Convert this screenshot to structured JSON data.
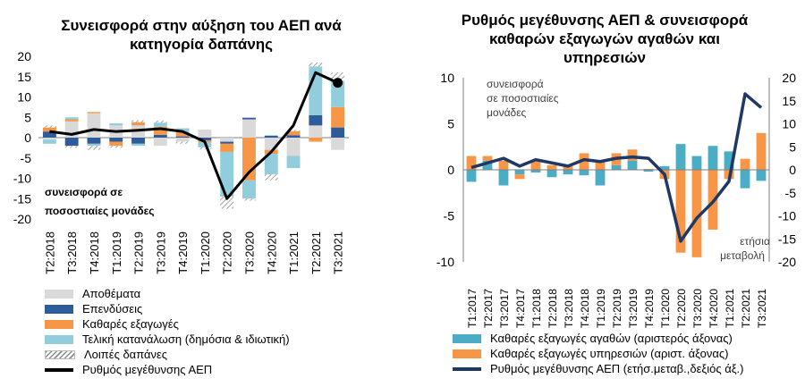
{
  "chart_data": [
    {
      "type": "bar",
      "stacked": true,
      "title": "Συνεισφορά στην αύξηση του ΑΕΠ ανά κατηγορία δαπάνης",
      "title_lines": [
        "Συνεισφορά στην αύξηση του ΑΕΠ ανά",
        "κατηγορία δαπάνης"
      ],
      "annotation_lines": [
        "συνεισφορά σε",
        "ποσοστιαίες μονάδες"
      ],
      "categories": [
        "Τ2:2018",
        "Τ3:2018",
        "Τ4:2018",
        "Τ1:2019",
        "Τ2:2019",
        "Τ3:2019",
        "Τ4:2019",
        "Τ1:2020",
        "Τ2:2020",
        "Τ3:2020",
        "Τ4:2020",
        "Τ1:2021",
        "Τ2:2021",
        "Τ3:2021"
      ],
      "ylim": [
        -20,
        20
      ],
      "yticks": [
        "20",
        "15",
        "10",
        "5",
        "0",
        "-5",
        "-10",
        "-15",
        "-20"
      ],
      "colors": {
        "inventories": "#d9d9d9",
        "investment": "#2e5b9a",
        "net_exports": "#f79646",
        "consumption": "#92cddc",
        "other": "#8c8c8c",
        "gdp": "#000000"
      },
      "series": [
        {
          "key": "inventories",
          "name": "Αποθέματα",
          "values": [
            -0.5,
            4.0,
            6.0,
            3.0,
            3.0,
            -2.0,
            -1.0,
            2.0,
            -1.0,
            4.5,
            -3.0,
            -4.5,
            3.0,
            -3.0
          ]
        },
        {
          "key": "investment",
          "name": "Επενδύσεις",
          "values": [
            1.5,
            -2.0,
            -1.5,
            -1.0,
            -1.5,
            0.7,
            0.3,
            -0.7,
            -0.5,
            0.4,
            0.5,
            0.6,
            2.5,
            2.5
          ]
        },
        {
          "key": "net_exports",
          "name": "Καθαρές εξαγωγές",
          "values": [
            1.0,
            0.5,
            0.3,
            -1.0,
            0.8,
            2.0,
            1.0,
            -0.4,
            -2.0,
            -10.5,
            -1.0,
            1.0,
            -1.0,
            5.0
          ]
        },
        {
          "key": "consumption",
          "name": "Τελική κατανάλωση (δημόσια & ιδιωτική)",
          "values": [
            -1.0,
            0.5,
            -0.5,
            0.5,
            -0.5,
            1.0,
            1.0,
            -1.3,
            -11.0,
            -4.5,
            -5.0,
            -3.0,
            12.0,
            6.5
          ]
        },
        {
          "key": "other",
          "name": "Λοιπές δαπάνες",
          "values": [
            0.5,
            -0.5,
            -1.0,
            -0.5,
            0.5,
            0.5,
            -0.5,
            -0.5,
            -3.0,
            -0.5,
            -1.5,
            0.3,
            1.0,
            2.0
          ]
        },
        {
          "key": "gdp",
          "name": "Ρυθμός μεγέθυνσης ΑΕΠ",
          "type": "line",
          "values": [
            1.5,
            0.8,
            2.0,
            1.5,
            1.8,
            2.2,
            1.5,
            -1.0,
            -15.0,
            -8.5,
            -3.5,
            3.0,
            16.0,
            13.5
          ]
        }
      ]
    },
    {
      "type": "bar",
      "title": "Ρυθμός μεγέθυνσης ΑΕΠ & συνεισφορά καθαρών εξαγωγών αγαθών και υπηρεσιών",
      "title_lines": [
        "Ρυθμός μεγέθυνσης ΑΕΠ & συνεισφορά",
        "καθαρών εξαγωγών αγαθών και",
        "υπηρεσιών"
      ],
      "left_axis_note_lines": [
        "συνεισφορά",
        "σε ποσοστιαίες",
        "μονάδες"
      ],
      "right_axis_note_lines": [
        "ετήσια",
        "μεταβολή"
      ],
      "categories": [
        "Τ1:2017",
        "Τ2:2017",
        "Τ3:2017",
        "Τ4:2017",
        "Τ1:2018",
        "Τ2:2018",
        "Τ3:2018",
        "Τ4:2018",
        "Τ1:2019",
        "Τ2:2019",
        "Τ3:2019",
        "Τ4:2019",
        "Τ1:2020",
        "Τ2:2020",
        "Τ3:2020",
        "Τ4:2020",
        "Τ1:2021",
        "Τ2:2021",
        "Τ3:2021"
      ],
      "ylim_left": [
        -10,
        10
      ],
      "ylim_right": [
        -20,
        20
      ],
      "yticks_left": [
        "10",
        "5",
        "0",
        "-5",
        "-10"
      ],
      "yticks_right": [
        "20",
        "15",
        "10",
        "5",
        "0",
        "-5",
        "-10",
        "-15",
        "-20"
      ],
      "colors": {
        "goods": "#4bacc6",
        "services": "#f79646",
        "gdp": "#1f3864"
      },
      "series": [
        {
          "key": "goods",
          "name": "Καθαρές εξαγωγές αγαθών (αριστερός άξονας)",
          "axis": "left",
          "values": [
            -1.3,
            1.0,
            -1.7,
            -0.5,
            -0.3,
            -0.8,
            -0.5,
            -0.6,
            -1.7,
            0.5,
            1.0,
            -0.2,
            0.4,
            2.8,
            1.5,
            2.6,
            2.0,
            -2.0,
            -1.2
          ]
        },
        {
          "key": "services",
          "name": "Καθαρές εξαγωγές υπηρεσιών (αριστ. άξονας)",
          "axis": "left",
          "values": [
            1.5,
            0.5,
            1.0,
            -0.5,
            1.0,
            0.5,
            0.5,
            1.8,
            1.0,
            1.3,
            1.2,
            0.1,
            -1.0,
            -9.0,
            -9.5,
            -6.5,
            -1.0,
            1.2,
            4.0
          ]
        },
        {
          "key": "gdp",
          "name": "Ρυθμός μεγέθυνσης ΑΕΠ (ετήσ.μεταβ.,δεξιός άξ.)",
          "axis": "right",
          "type": "line",
          "values": [
            0.5,
            1.5,
            2.5,
            0.8,
            2.2,
            1.5,
            0.8,
            2.2,
            1.8,
            2.5,
            2.8,
            2.5,
            -1.0,
            -15.5,
            -10.5,
            -7.0,
            -2.5,
            16.5,
            13.5
          ]
        }
      ]
    }
  ]
}
